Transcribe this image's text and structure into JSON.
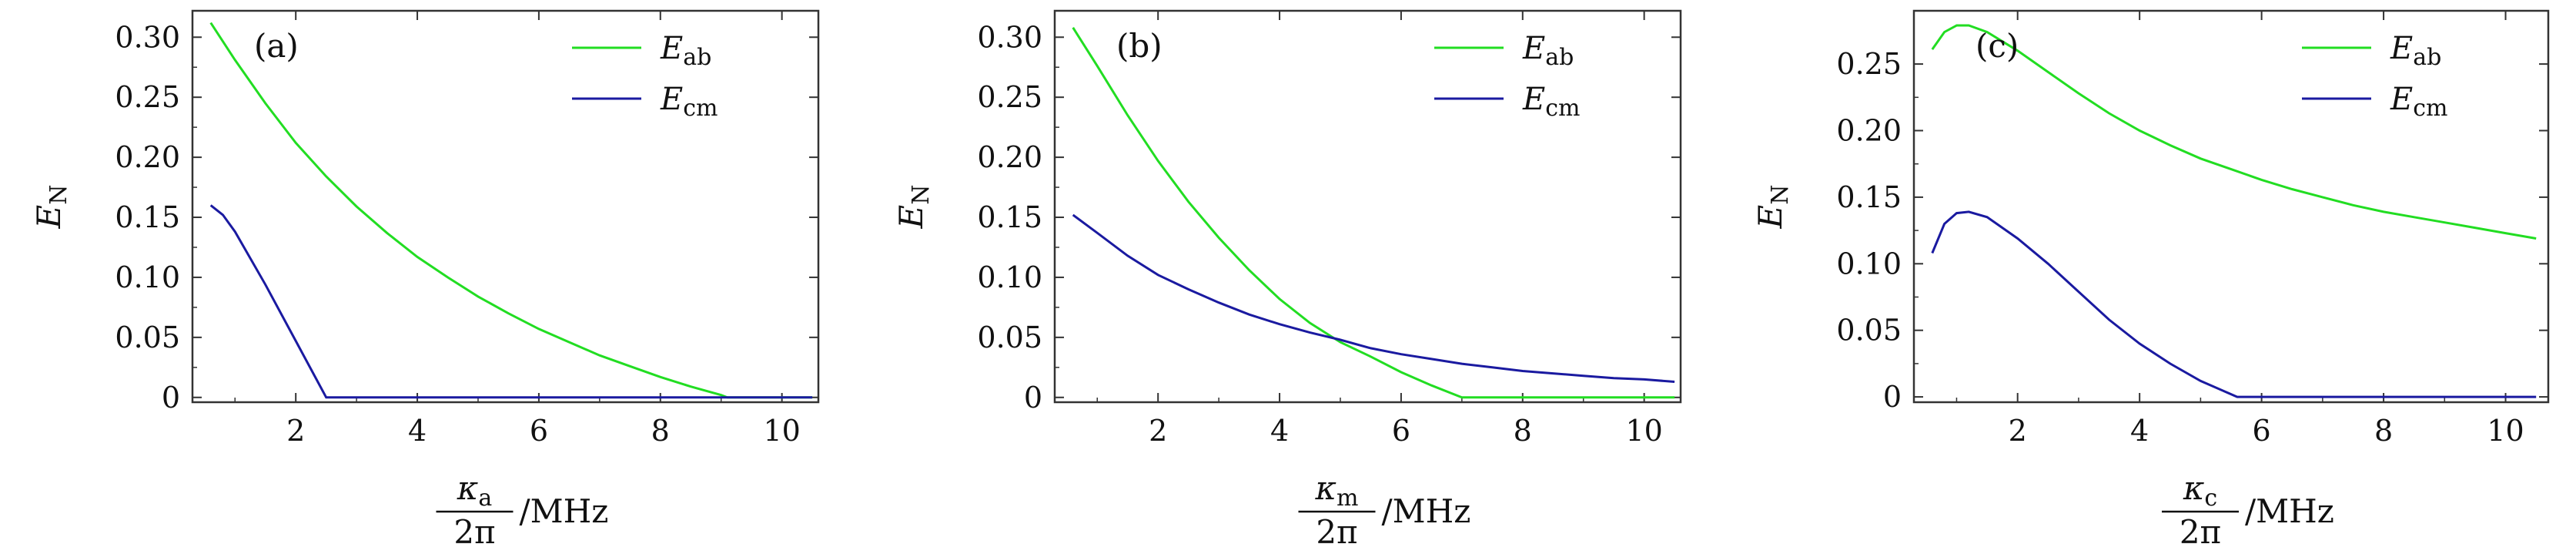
{
  "chart_data": [
    {
      "type": "line",
      "panel_label": "(a)",
      "x_tick_labels": [
        "2",
        "4",
        "6",
        "8",
        "10"
      ],
      "y_tick_labels": [
        "0",
        "0.05",
        "0.10",
        "0.15",
        "0.20",
        "0.25",
        "0.30"
      ],
      "xlim": [
        0.3,
        10.6
      ],
      "ylim": [
        -0.004,
        0.322
      ],
      "ylabel": {
        "main": "E",
        "sub": "N"
      },
      "xlabel": {
        "numerator_main": "κ",
        "numerator_sub": "a",
        "denominator": "2π",
        "unit": "/MHz"
      },
      "legend_position": "top-right",
      "series": [
        {
          "name": "E",
          "name_sub": "ab",
          "color": "#22dd22",
          "x": [
            0.6,
            1.0,
            1.5,
            2.0,
            2.5,
            3.0,
            3.5,
            4.0,
            4.5,
            5.0,
            5.5,
            6.0,
            6.5,
            7.0,
            7.5,
            8.0,
            8.5,
            9.0,
            9.1,
            9.5,
            10.0,
            10.5
          ],
          "y": [
            0.312,
            0.281,
            0.245,
            0.212,
            0.184,
            0.159,
            0.137,
            0.117,
            0.1,
            0.084,
            0.07,
            0.057,
            0.046,
            0.035,
            0.026,
            0.017,
            0.009,
            0.002,
            0.0,
            0.0,
            0.0,
            0.0
          ]
        },
        {
          "name": "E",
          "name_sub": "cm",
          "color": "#1a1aa0",
          "x": [
            0.6,
            0.8,
            1.0,
            1.5,
            2.0,
            2.5,
            3.0,
            4.0,
            5.0,
            6.0,
            7.0,
            8.0,
            9.0,
            10.0,
            10.5
          ],
          "y": [
            0.16,
            0.152,
            0.138,
            0.094,
            0.047,
            0.0,
            0.0,
            0.0,
            0.0,
            0.0,
            0.0,
            0.0,
            0.0,
            0.0,
            0.0
          ]
        }
      ]
    },
    {
      "type": "line",
      "panel_label": "(b)",
      "x_tick_labels": [
        "2",
        "4",
        "6",
        "8",
        "10"
      ],
      "y_tick_labels": [
        "0",
        "0.05",
        "0.10",
        "0.15",
        "0.20",
        "0.25",
        "0.30"
      ],
      "xlim": [
        0.3,
        10.6
      ],
      "ylim": [
        -0.004,
        0.322
      ],
      "ylabel": {
        "main": "E",
        "sub": "N"
      },
      "xlabel": {
        "numerator_main": "κ",
        "numerator_sub": "m",
        "denominator": "2π",
        "unit": "/MHz"
      },
      "legend_position": "top-right",
      "series": [
        {
          "name": "E",
          "name_sub": "ab",
          "color": "#22dd22",
          "x": [
            0.6,
            1.0,
            1.5,
            2.0,
            2.5,
            3.0,
            3.5,
            4.0,
            4.5,
            5.0,
            5.5,
            6.0,
            6.5,
            7.0,
            8.0,
            9.0,
            10.0,
            10.5
          ],
          "y": [
            0.308,
            0.276,
            0.235,
            0.197,
            0.163,
            0.133,
            0.106,
            0.082,
            0.062,
            0.046,
            0.034,
            0.021,
            0.01,
            0.0,
            0.0,
            0.0,
            0.0,
            0.0
          ]
        },
        {
          "name": "E",
          "name_sub": "cm",
          "color": "#1a1aa0",
          "x": [
            0.6,
            1.0,
            1.5,
            2.0,
            2.5,
            3.0,
            3.5,
            4.0,
            4.5,
            5.0,
            5.5,
            6.0,
            6.5,
            7.0,
            7.5,
            8.0,
            8.5,
            9.0,
            9.5,
            10.0,
            10.5
          ],
          "y": [
            0.152,
            0.137,
            0.118,
            0.102,
            0.09,
            0.079,
            0.069,
            0.061,
            0.054,
            0.048,
            0.041,
            0.036,
            0.032,
            0.028,
            0.025,
            0.022,
            0.02,
            0.018,
            0.016,
            0.015,
            0.013
          ]
        }
      ]
    },
    {
      "type": "line",
      "panel_label": "(c)",
      "x_tick_labels": [
        "2",
        "4",
        "6",
        "8",
        "10"
      ],
      "y_tick_labels": [
        "0",
        "0.05",
        "0.10",
        "0.15",
        "0.20",
        "0.25"
      ],
      "xlim": [
        0.3,
        10.7
      ],
      "ylim": [
        -0.004,
        0.29
      ],
      "ylabel": {
        "main": "E",
        "sub": "N"
      },
      "xlabel": {
        "numerator_main": "κ",
        "numerator_sub": "c",
        "denominator": "2π",
        "unit": "/MHz"
      },
      "legend_position": "top-right",
      "series": [
        {
          "name": "E",
          "name_sub": "ab",
          "color": "#22dd22",
          "x": [
            0.6,
            0.8,
            1.0,
            1.2,
            1.5,
            2.0,
            2.5,
            3.0,
            3.5,
            4.0,
            4.5,
            5.0,
            5.5,
            6.0,
            6.5,
            7.0,
            7.5,
            8.0,
            8.5,
            9.0,
            9.5,
            10.0,
            10.5
          ],
          "y": [
            0.261,
            0.274,
            0.279,
            0.279,
            0.274,
            0.26,
            0.244,
            0.228,
            0.213,
            0.2,
            0.189,
            0.179,
            0.171,
            0.163,
            0.156,
            0.15,
            0.144,
            0.139,
            0.135,
            0.131,
            0.127,
            0.123,
            0.119
          ]
        },
        {
          "name": "E",
          "name_sub": "cm",
          "color": "#1a1aa0",
          "x": [
            0.6,
            0.8,
            1.0,
            1.2,
            1.5,
            2.0,
            2.5,
            3.0,
            3.5,
            4.0,
            4.5,
            5.0,
            5.4,
            5.6,
            6.0,
            7.0,
            8.0,
            9.0,
            10.0,
            10.5
          ],
          "y": [
            0.108,
            0.13,
            0.138,
            0.139,
            0.135,
            0.119,
            0.1,
            0.079,
            0.058,
            0.04,
            0.025,
            0.012,
            0.004,
            0.0,
            0.0,
            0.0,
            0.0,
            0.0,
            0.0,
            0.0
          ]
        }
      ]
    }
  ]
}
